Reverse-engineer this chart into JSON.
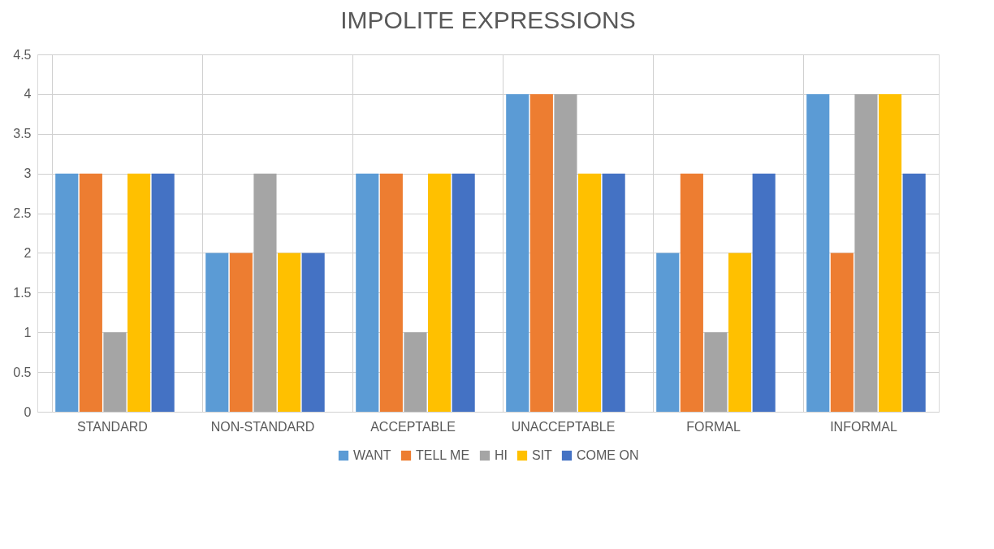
{
  "chart_data": {
    "type": "bar",
    "title": "IMPOLITE EXPRESSIONS",
    "categories": [
      "STANDARD",
      "NON-STANDARD",
      "ACCEPTABLE",
      "UNACCEPTABLE",
      "FORMAL",
      "INFORMAL"
    ],
    "series": [
      {
        "name": "WANT",
        "color": "#5b9bd5",
        "values": [
          3,
          2,
          3,
          4,
          2,
          4
        ]
      },
      {
        "name": "TELL ME",
        "color": "#ed7d31",
        "values": [
          3,
          2,
          3,
          4,
          3,
          2
        ]
      },
      {
        "name": "HI",
        "color": "#a5a5a5",
        "values": [
          1,
          3,
          1,
          4,
          1,
          4
        ]
      },
      {
        "name": "SIT",
        "color": "#ffc000",
        "values": [
          3,
          2,
          3,
          3,
          2,
          4
        ]
      },
      {
        "name": "COME ON",
        "color": "#4472c4",
        "values": [
          3,
          2,
          3,
          3,
          3,
          3
        ]
      }
    ],
    "ylim": [
      0,
      4.5
    ],
    "yticks": [
      0,
      0.5,
      1,
      1.5,
      2,
      2.5,
      3,
      3.5,
      4,
      4.5
    ],
    "grid": true,
    "legend": "bottom"
  }
}
